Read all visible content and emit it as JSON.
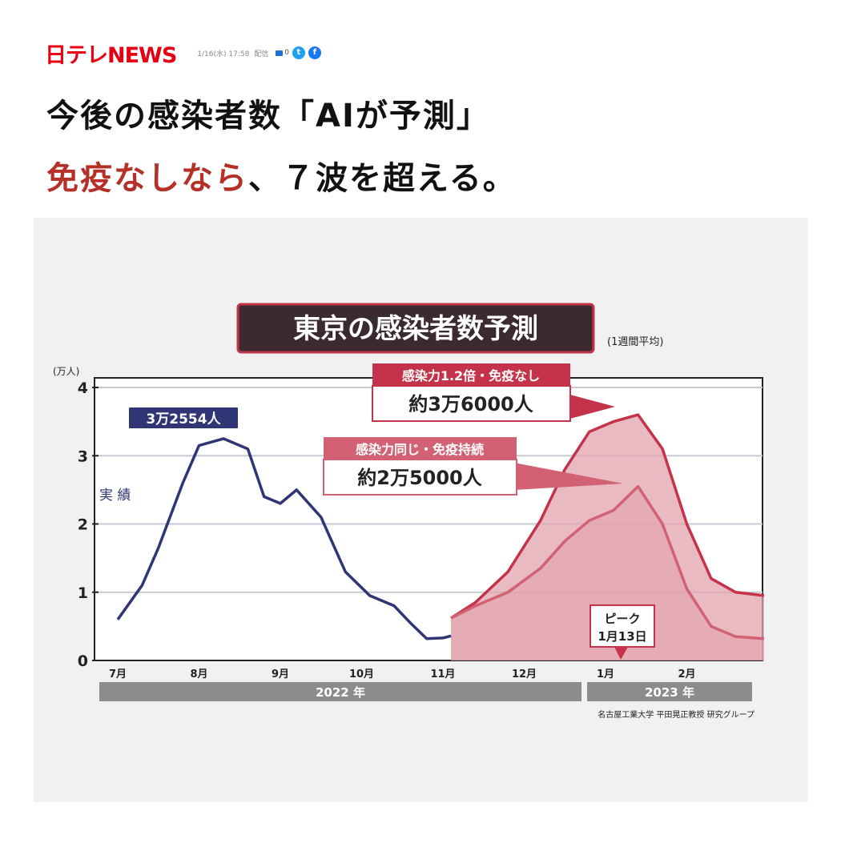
{
  "header": {
    "logo": "日テレNEWS",
    "date": "1/16(水) 17:58",
    "delivery": "配信",
    "comments": "0",
    "twitter_icon": "twitter-icon",
    "facebook_icon": "facebook-icon"
  },
  "headline": {
    "line1": "今後の感染者数「AIが予測」",
    "line2_red": "免疫なしなら",
    "line2_rest": "、７波を超える。"
  },
  "chart_data": {
    "type": "line",
    "title": "東京の感染者数予測",
    "subtitle": "(1週間平均)",
    "ylabel": "(万人)",
    "ylim": [
      0,
      4
    ],
    "yticks": [
      "0",
      "1",
      "2",
      "3",
      "4"
    ],
    "xticks": [
      "7月",
      "8月",
      "9月",
      "10月",
      "11月",
      "12月",
      "1月",
      "2月"
    ],
    "year_bands": [
      "2022 年",
      "2023 年"
    ],
    "source": "名古屋工業大学 平田晃正教授 研究グループ",
    "colors": {
      "actual": "#2f3575",
      "forecast": "#c4334a",
      "forecast_fill": "#e3a3ae"
    },
    "series": [
      {
        "name": "実 績",
        "x": [
          0.0,
          0.3,
          0.5,
          0.8,
          1.0,
          1.3,
          1.6,
          1.8,
          2.0,
          2.2,
          2.5,
          2.8,
          3.1,
          3.4,
          3.6,
          3.8,
          4.0,
          4.1
        ],
        "values": [
          0.6,
          1.1,
          1.65,
          2.6,
          3.15,
          3.25,
          3.1,
          2.4,
          2.3,
          2.5,
          2.1,
          1.3,
          0.95,
          0.8,
          0.55,
          0.32,
          0.33,
          0.36
        ]
      },
      {
        "name": "感染力同じ・免疫持続",
        "x": [
          4.1,
          4.4,
          4.8,
          5.2,
          5.5,
          5.8,
          6.1,
          6.4,
          6.7,
          7.0,
          7.3,
          7.6,
          7.95
        ],
        "values": [
          0.62,
          0.8,
          1.0,
          1.35,
          1.75,
          2.05,
          2.2,
          2.55,
          2.0,
          1.05,
          0.5,
          0.35,
          0.32
        ]
      },
      {
        "name": "感染力1.2倍・免疫なし",
        "x": [
          4.1,
          4.4,
          4.8,
          5.2,
          5.5,
          5.8,
          6.1,
          6.4,
          6.7,
          7.0,
          7.3,
          7.6,
          7.95
        ],
        "values": [
          0.62,
          0.85,
          1.3,
          2.05,
          2.8,
          3.35,
          3.5,
          3.6,
          3.1,
          2.0,
          1.2,
          1.0,
          0.95
        ]
      }
    ],
    "annotations": {
      "actual_peak": "3万2554人",
      "actual_label": "実 績",
      "high_label": "感染力1.2倍・免疫なし",
      "high_value": "約3万6000人",
      "low_label": "感染力同じ・免疫持続",
      "low_value": "約2万5000人",
      "peak_label1": "ピーク",
      "peak_label2": "1月13日"
    }
  }
}
